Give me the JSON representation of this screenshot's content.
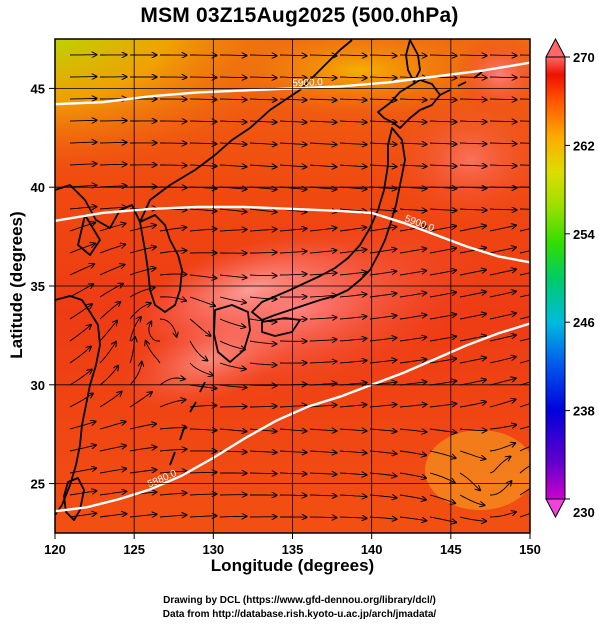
{
  "title": "MSM 03Z15Aug2025 (500.0hPa)",
  "axes": {
    "xlabel": "Longitude (degrees)",
    "ylabel": "Latitude  (degrees)",
    "xlim": [
      120,
      150
    ],
    "ylim": [
      22.5,
      47.5
    ],
    "xticks": [
      120,
      125,
      130,
      135,
      140,
      145,
      150
    ],
    "yticks": [
      25,
      30,
      35,
      40,
      45
    ],
    "grid": true
  },
  "colorbar": {
    "min": 230,
    "max": 270,
    "ticks": [
      230,
      238,
      246,
      254,
      262,
      270
    ],
    "colors": [
      "#cc00cc",
      "#6600cc",
      "#0000dd",
      "#0055ee",
      "#00bbdd",
      "#00cc66",
      "#33dd00",
      "#99e000",
      "#dddd00",
      "#ffaa00",
      "#ff5500",
      "#ee1100",
      "#ff6666"
    ]
  },
  "contours": [
    {
      "label": "5900.0",
      "lon": [
        120,
        123,
        126,
        129,
        132,
        135,
        138,
        141,
        144,
        147,
        150
      ],
      "lat": [
        44.2,
        44.3,
        44.6,
        44.8,
        44.9,
        45.0,
        45.1,
        45.3,
        45.6,
        45.9,
        46.3
      ]
    },
    {
      "label": "5900.0",
      "lon": [
        120,
        123,
        126,
        129,
        132,
        135,
        138,
        140,
        142,
        144,
        146,
        148,
        150
      ],
      "lat": [
        38.3,
        38.7,
        38.9,
        39.0,
        39.0,
        38.9,
        38.8,
        38.7,
        38.2,
        37.6,
        37.0,
        36.5,
        36.2
      ]
    },
    {
      "label": "5880.0",
      "lon": [
        120,
        122,
        124,
        126,
        128,
        130,
        132,
        134,
        136,
        138,
        140,
        142,
        144,
        146,
        148,
        150
      ],
      "lat": [
        23.6,
        23.8,
        24.2,
        24.7,
        25.4,
        26.3,
        27.3,
        28.2,
        28.9,
        29.4,
        30.0,
        30.6,
        31.3,
        32.0,
        32.6,
        33.1
      ]
    }
  ],
  "credits": [
    "Drawing by DCL (https://www.gfd-dennou.org/library/dcl/)",
    "Data from http://database.rish.kyoto-u.ac.jp/arch/jmadata/"
  ]
}
